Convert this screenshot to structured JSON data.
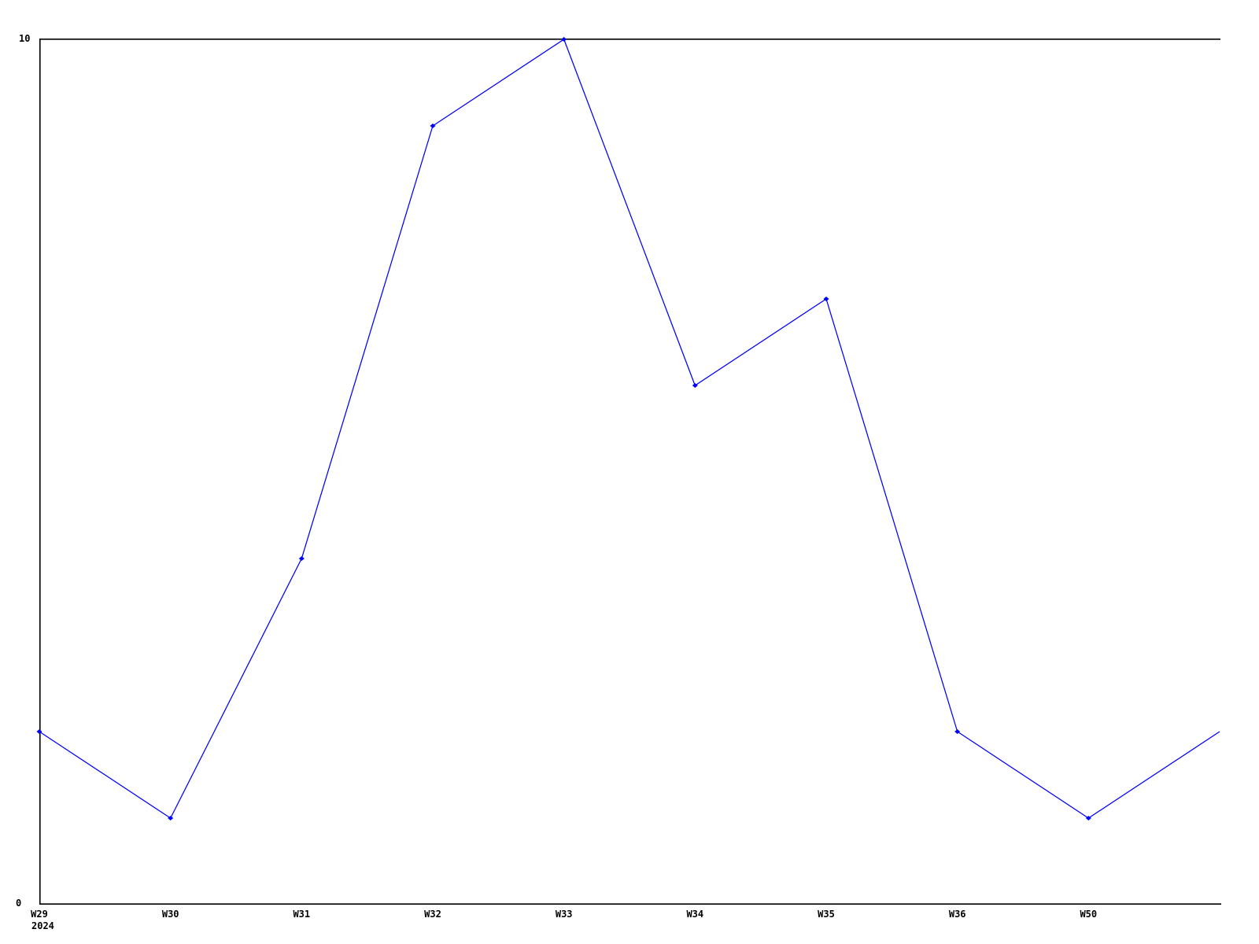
{
  "chart_data": {
    "type": "line",
    "title": "",
    "categories": [
      "W29",
      "W30",
      "W31",
      "W32",
      "W33",
      "W34",
      "W35",
      "W36",
      "W50"
    ],
    "values": [
      2,
      1,
      4,
      9,
      10,
      6,
      7,
      2,
      1
    ],
    "trailing_segment": {
      "description": "line continues past last labeled point to right clip edge, no marker",
      "end_value": 2
    },
    "x_axis": {
      "year_label": "2024",
      "tick_marks": false
    },
    "y_axis": {
      "min_label": "0",
      "max_label": "10",
      "ylim": [
        0,
        10
      ],
      "tick_marks": false
    },
    "line_color": "#0000ff",
    "marker": "diamond",
    "marker_color": "#0000ff",
    "axis_color": "#000000",
    "background_color": "#ffffff",
    "grid": false,
    "legend": false,
    "frame_sides": [
      "left",
      "top",
      "bottom"
    ]
  }
}
